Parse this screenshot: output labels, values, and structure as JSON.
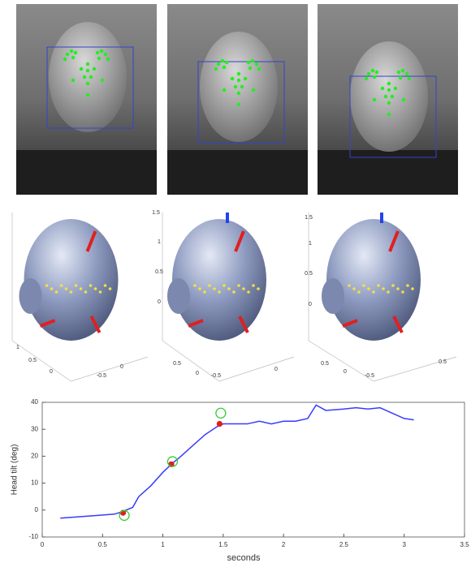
{
  "head_plots": [
    {
      "tick_labels": [
        "1",
        "0.5",
        "0",
        "0",
        "-0.5"
      ]
    },
    {
      "tick_labels": [
        "1.5",
        "1",
        "0.5",
        "0",
        "0.5",
        "0",
        "0",
        "-0.5"
      ]
    },
    {
      "tick_labels": [
        "1.5",
        "1",
        "0.5",
        "0",
        "0.5",
        "0",
        "-0.5",
        "0.5"
      ]
    }
  ],
  "chart_data": {
    "type": "line",
    "xlabel": "seconds",
    "ylabel": "Head tilt (deg)",
    "xlim": [
      0,
      3.5
    ],
    "xticks": [
      0,
      0.5,
      1,
      1.5,
      2,
      2.5,
      3,
      3.5
    ],
    "ylim": [
      -10,
      40
    ],
    "yticks": [
      -10,
      0,
      10,
      20,
      30,
      40
    ],
    "series": [
      {
        "color": "#3a3aff",
        "marker": "line",
        "x": [
          0.15,
          0.3,
          0.45,
          0.6,
          0.67,
          0.75,
          0.8,
          0.9,
          1.0,
          1.07,
          1.15,
          1.25,
          1.35,
          1.45,
          1.5,
          1.6,
          1.7,
          1.8,
          1.9,
          2.0,
          2.1,
          2.2,
          2.27,
          2.35,
          2.5,
          2.6,
          2.7,
          2.8,
          2.9,
          3.0,
          3.08
        ],
        "values": [
          -3,
          -2.5,
          -2,
          -1.5,
          -0.5,
          1,
          5,
          9,
          14,
          17,
          20,
          24,
          28,
          31,
          32,
          32,
          32,
          33,
          32,
          33,
          33,
          34,
          39,
          37,
          37.5,
          38,
          37.5,
          38,
          36,
          34,
          33.5
        ]
      },
      {
        "color": "#e02020",
        "marker": "dot",
        "x": [
          0.67,
          1.07,
          1.47
        ],
        "values": [
          -1,
          17,
          32
        ]
      },
      {
        "color": "#33cc33",
        "marker": "circle",
        "x": [
          0.68,
          1.08,
          1.48
        ],
        "values": [
          -2,
          18,
          36
        ]
      }
    ]
  }
}
